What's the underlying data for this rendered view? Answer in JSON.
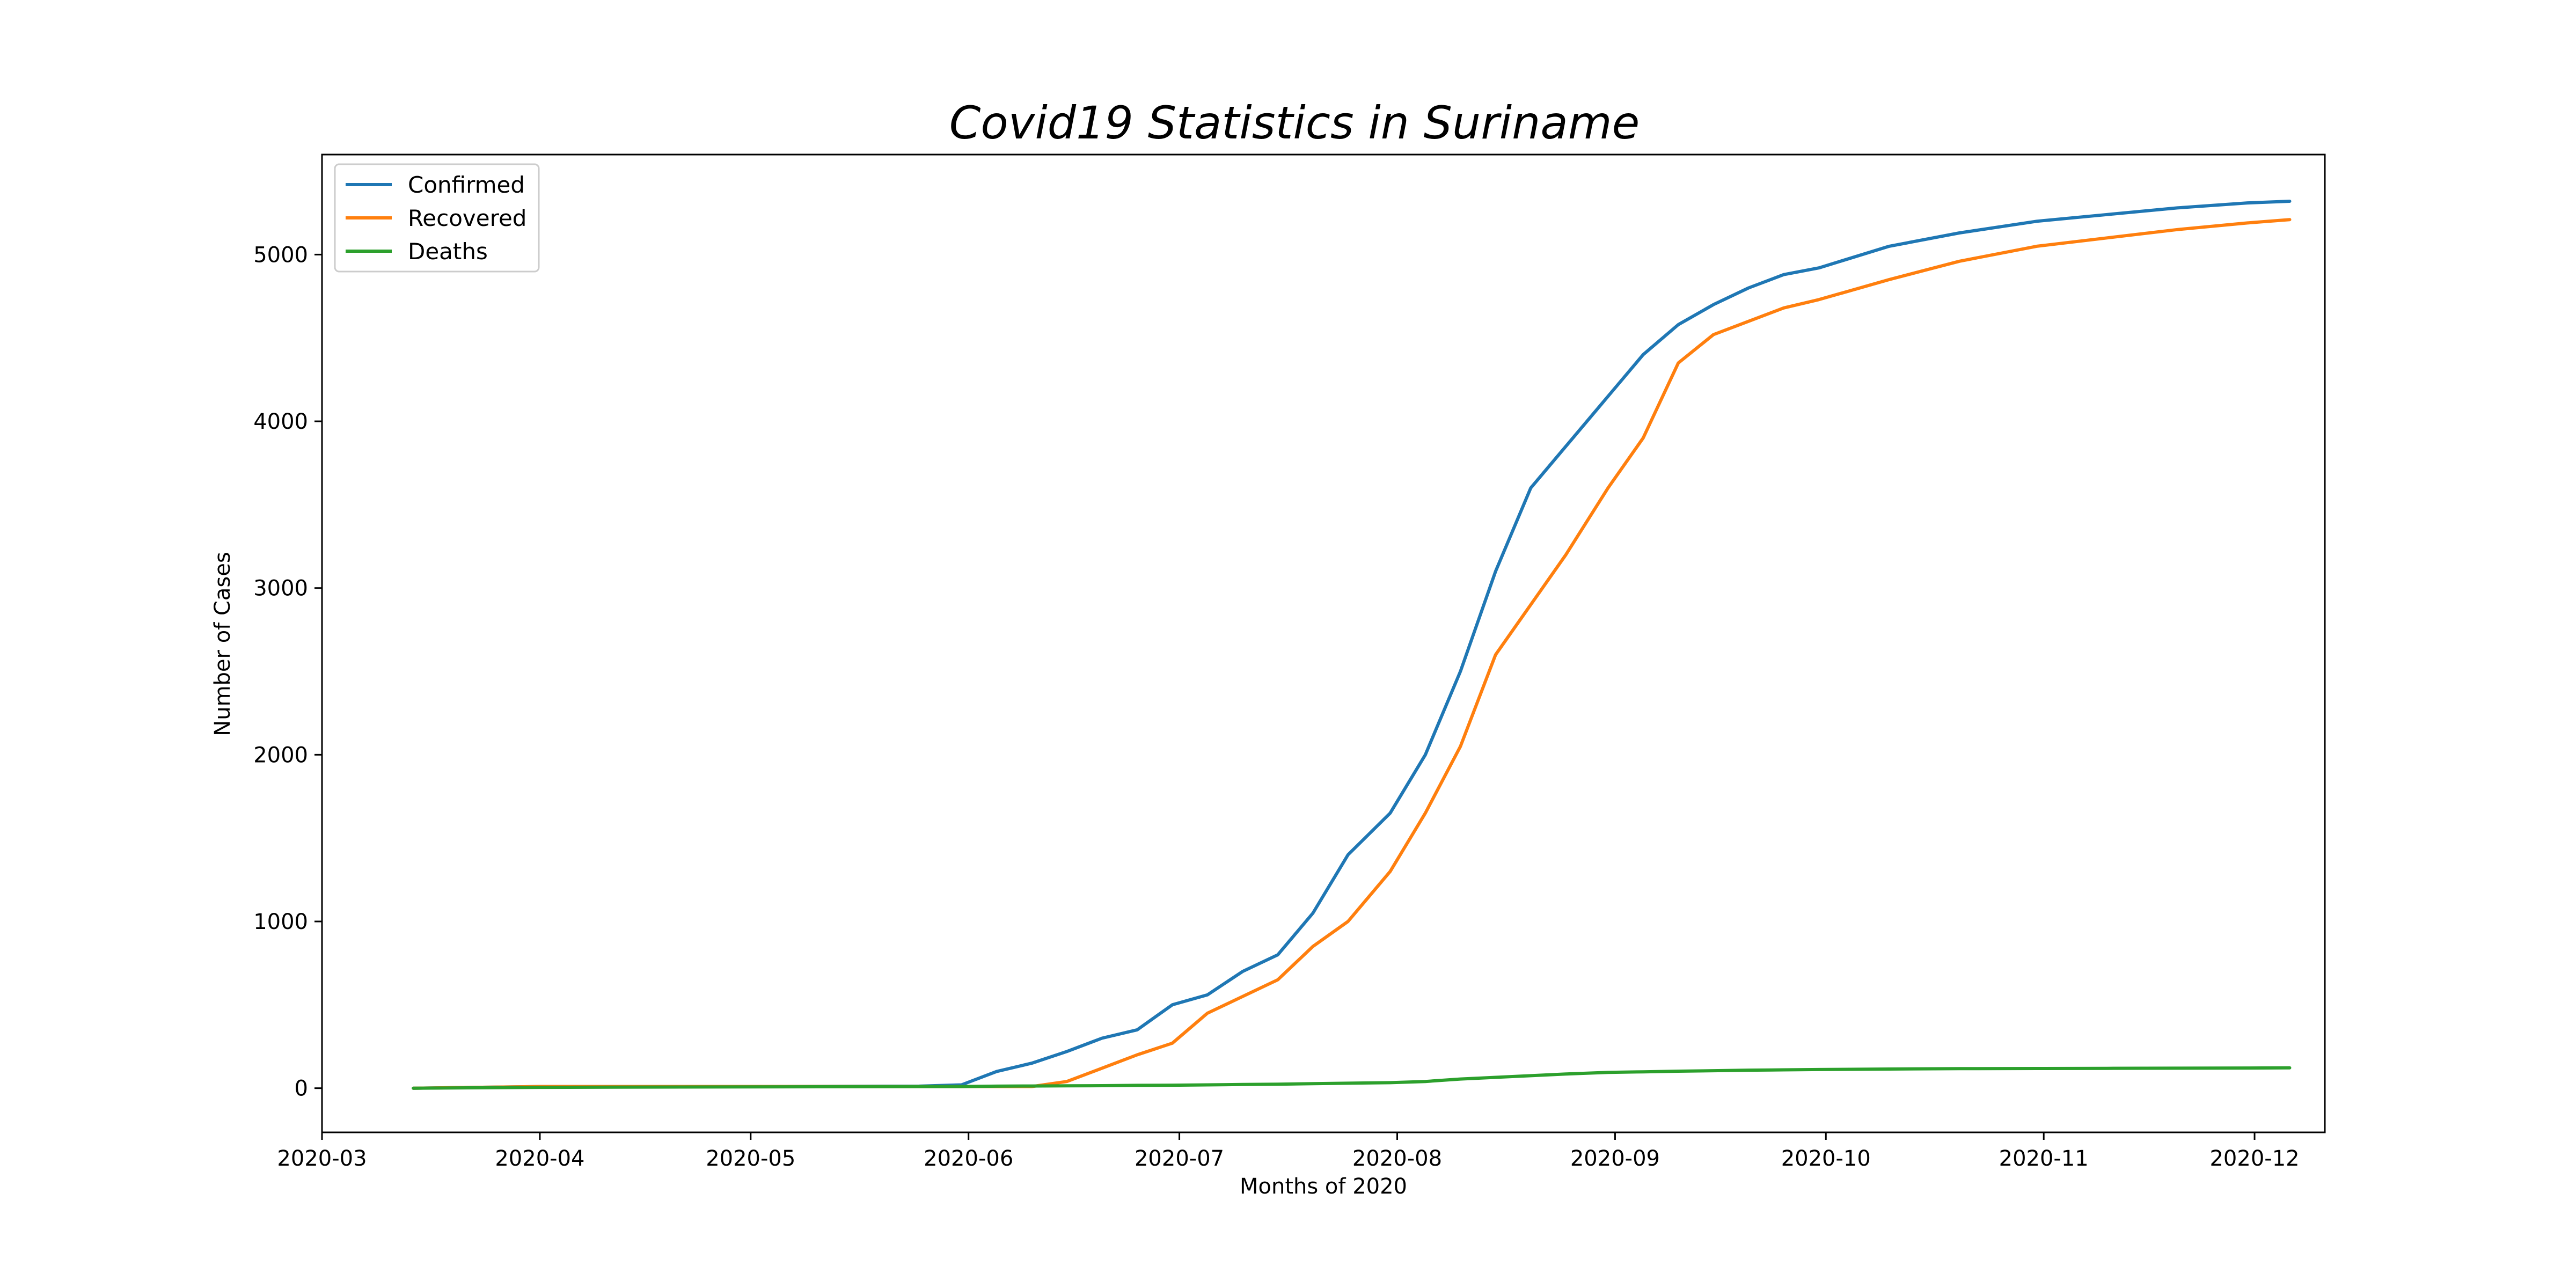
{
  "chart_data": {
    "type": "line",
    "title": "Covid19 Statistics in Suriname",
    "xlabel": "Months of 2020",
    "ylabel": "Number of Cases",
    "x_ticks": [
      "2020-03",
      "2020-04",
      "2020-05",
      "2020-06",
      "2020-07",
      "2020-08",
      "2020-09",
      "2020-10",
      "2020-11",
      "2020-12"
    ],
    "x_range": [
      "2020-03-01",
      "2020-12-11"
    ],
    "y_ticks": [
      0,
      1000,
      2000,
      3000,
      4000,
      5000
    ],
    "ylim": [
      -265,
      5600
    ],
    "grid": false,
    "legend_position": "top-left",
    "x": [
      "2020-03-14",
      "2020-04-01",
      "2020-05-01",
      "2020-05-25",
      "2020-05-31",
      "2020-06-05",
      "2020-06-10",
      "2020-06-15",
      "2020-06-20",
      "2020-06-25",
      "2020-06-30",
      "2020-07-05",
      "2020-07-10",
      "2020-07-15",
      "2020-07-20",
      "2020-07-25",
      "2020-07-31",
      "2020-08-05",
      "2020-08-10",
      "2020-08-15",
      "2020-08-20",
      "2020-08-25",
      "2020-08-31",
      "2020-09-05",
      "2020-09-10",
      "2020-09-15",
      "2020-09-20",
      "2020-09-25",
      "2020-09-30",
      "2020-10-10",
      "2020-10-20",
      "2020-10-31",
      "2020-11-10",
      "2020-11-20",
      "2020-11-30",
      "2020-12-06"
    ],
    "series": [
      {
        "name": "Confirmed",
        "color": "#1f77b4",
        "values": [
          0,
          10,
          10,
          12,
          20,
          100,
          150,
          220,
          300,
          350,
          500,
          560,
          700,
          800,
          1050,
          1400,
          1650,
          2000,
          2500,
          3100,
          3600,
          3850,
          4150,
          4400,
          4580,
          4700,
          4800,
          4880,
          4920,
          5050,
          5130,
          5200,
          5240,
          5280,
          5310,
          5320
        ]
      },
      {
        "name": "Recovered",
        "color": "#ff7f0e",
        "values": [
          0,
          10,
          10,
          10,
          10,
          10,
          10,
          40,
          120,
          200,
          270,
          450,
          550,
          650,
          850,
          1000,
          1300,
          1650,
          2050,
          2600,
          2900,
          3200,
          3600,
          3900,
          4350,
          4520,
          4600,
          4680,
          4730,
          4850,
          4960,
          5050,
          5100,
          5150,
          5190,
          5210
        ]
      },
      {
        "name": "Deaths",
        "color": "#2ca02c",
        "values": [
          0,
          5,
          8,
          10,
          10,
          12,
          13,
          14,
          15,
          17,
          18,
          20,
          22,
          24,
          27,
          30,
          33,
          40,
          55,
          65,
          75,
          85,
          95,
          98,
          102,
          105,
          108,
          110,
          112,
          115,
          117,
          118,
          119,
          120,
          121,
          122
        ]
      }
    ]
  }
}
